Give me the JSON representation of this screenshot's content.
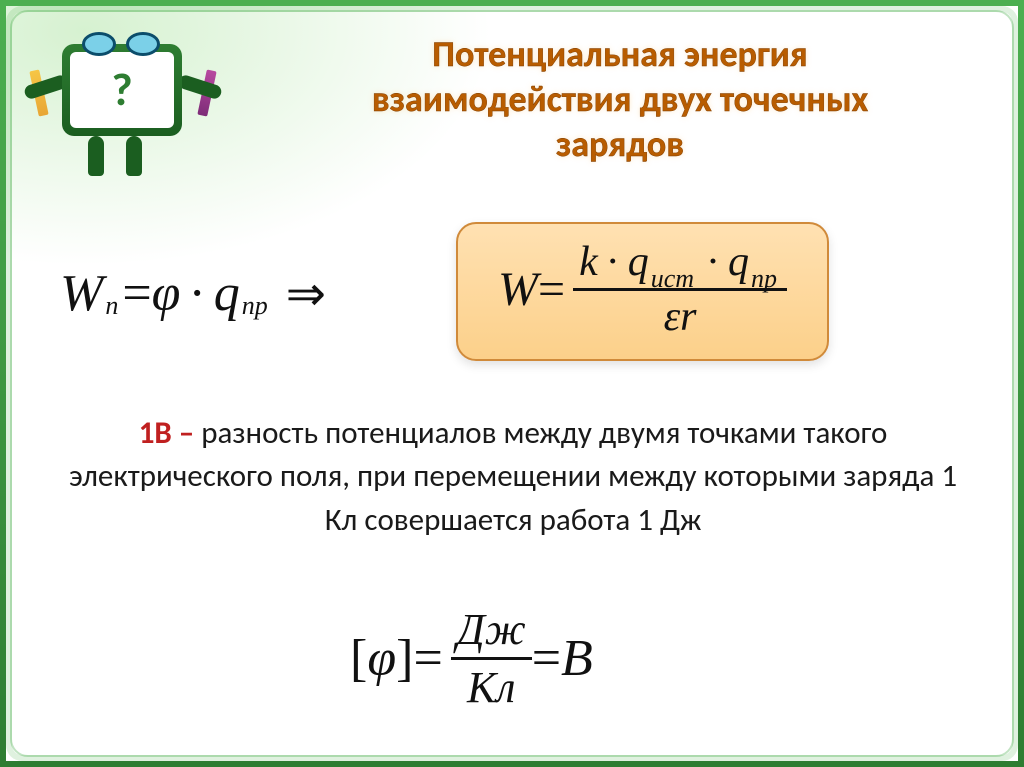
{
  "colors": {
    "frame_green_top": "#4caf50",
    "frame_green_bottom": "#2e7d32",
    "title_color": "#b85c00",
    "box_bg_top": "#ffe1b2",
    "box_bg_bottom": "#fcd08a",
    "box_border": "#d08a3a",
    "lead_red": "#c02020",
    "text_black": "#111111"
  },
  "mascot": {
    "question": "?"
  },
  "title": {
    "line1": "Потенциальная энергия",
    "line2": "взаимодействия двух точечных",
    "line3": "зарядов"
  },
  "formula1": {
    "W": "W",
    "Wsub": "n",
    "eq": " = ",
    "phi": "φ",
    "dot": " · ",
    "q": "q",
    "qsub": "np",
    "arrow": " ⇒"
  },
  "formula2": {
    "W": "W",
    "eq": " = ",
    "k": "k",
    "dot": " · ",
    "q1": "q",
    "q1sub": "ист",
    "q2": "q",
    "q2sub": "np",
    "eps": "ε",
    "r": "r"
  },
  "definition": {
    "lead": "1В – ",
    "text": "разность потенциалов между двумя точками такого электрического поля, при перемещении между которыми заряда 1 Кл совершается работа 1 Дж"
  },
  "formula3": {
    "lb": "[",
    "phi": "φ",
    "rb": "]",
    "eq1": " = ",
    "num": "Дж",
    "den": "Кл",
    "eq2": " = ",
    "V": "В"
  }
}
